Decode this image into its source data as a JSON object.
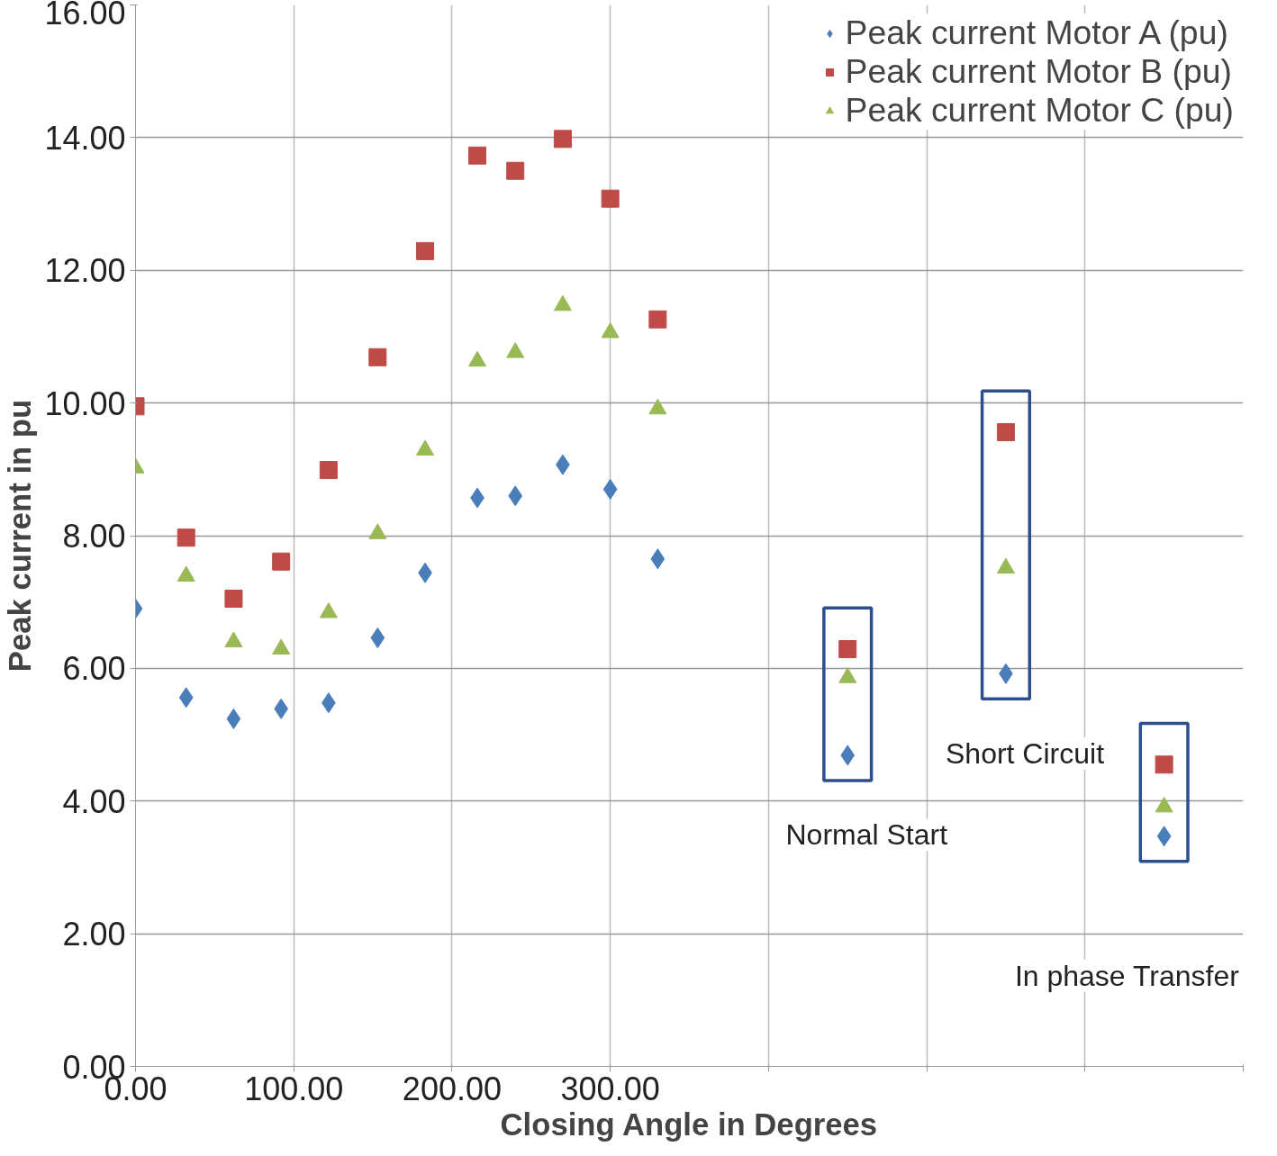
{
  "chart_data": {
    "type": "scatter",
    "xlabel": "Closing Angle in Degrees",
    "ylabel": "Peak current in pu",
    "x": [
      0,
      32,
      62,
      92,
      122,
      153,
      183,
      216,
      240,
      270,
      300,
      330,
      450,
      550,
      650
    ],
    "series": [
      {
        "name": "Peak current Motor A (pu)",
        "color": "#4a7ebb",
        "marker": "diamond",
        "values": [
          6.9,
          5.56,
          5.24,
          5.39,
          5.48,
          6.46,
          7.44,
          8.57,
          8.6,
          9.07,
          8.7,
          7.65,
          4.69,
          5.92,
          3.47
        ]
      },
      {
        "name": "Peak current Motor B (pu)",
        "color": "#be4b48",
        "marker": "square",
        "values": [
          9.95,
          7.97,
          7.05,
          7.61,
          8.99,
          10.69,
          12.29,
          13.73,
          13.5,
          13.98,
          13.08,
          11.26,
          6.29,
          9.56,
          4.55
        ]
      },
      {
        "name": "Peak current Motor C (pu)",
        "color": "#98b954",
        "marker": "triangle",
        "values": [
          9.02,
          7.39,
          6.4,
          6.29,
          6.84,
          8.03,
          9.29,
          10.63,
          10.76,
          11.47,
          11.06,
          9.91,
          5.86,
          7.51,
          3.91
        ]
      }
    ],
    "xlim": [
      0,
      700
    ],
    "xticks": [
      {
        "value": 0,
        "label": "0.00"
      },
      {
        "value": 100,
        "label": "100.00"
      },
      {
        "value": 200,
        "label": "200.00"
      },
      {
        "value": 300,
        "label": "300.00"
      },
      {
        "value": 400,
        "label": null
      },
      {
        "value": 500,
        "label": null
      },
      {
        "value": 600,
        "label": null
      },
      {
        "value": 700,
        "label": null
      }
    ],
    "ylim": [
      0,
      16
    ],
    "yticks": [
      {
        "value": 0,
        "label": "0.00"
      },
      {
        "value": 2,
        "label": "2.00"
      },
      {
        "value": 4,
        "label": "4.00"
      },
      {
        "value": 6,
        "label": "6.00"
      },
      {
        "value": 8,
        "label": "8.00"
      },
      {
        "value": 10,
        "label": "10.00"
      },
      {
        "value": 12,
        "label": "12.00"
      },
      {
        "value": 14,
        "label": "14.00"
      },
      {
        "value": 16,
        "label": "16.00"
      }
    ],
    "annotations": [
      "Normal Start",
      "Short Circuit",
      "In phase Transfer"
    ],
    "grid": true,
    "legend": "top right"
  }
}
